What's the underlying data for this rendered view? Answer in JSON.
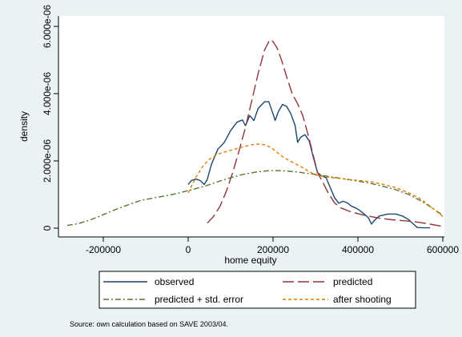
{
  "chart_data": {
    "type": "line",
    "title": "",
    "xlabel": "home equity",
    "ylabel": "density",
    "xlim": [
      -310000,
      610000
    ],
    "ylim": [
      -200000,
      6300000
    ],
    "y_unit_note": "y values stored as density x 1e12",
    "xticks": [
      -200000,
      0,
      200000,
      400000,
      600000
    ],
    "xtick_labels": [
      "-200000",
      "0",
      "200000",
      "400000",
      "600000"
    ],
    "yticks": [
      0,
      2000000,
      4000000,
      6000000
    ],
    "ytick_labels": [
      "0",
      "2.000e-06",
      "4.000e-06",
      "6.000e-06"
    ],
    "grid": false,
    "legend_position": "bottom",
    "note": "Source: own calculation based on SAVE 2003/04.",
    "series": [
      {
        "name": "observed",
        "color": "#1a476f",
        "dash": "solid",
        "points": [
          [
            0,
            1300000
          ],
          [
            8000,
            1420000
          ],
          [
            18000,
            1460000
          ],
          [
            28000,
            1420000
          ],
          [
            38000,
            1300000
          ],
          [
            45000,
            1450000
          ],
          [
            55000,
            1900000
          ],
          [
            70000,
            2350000
          ],
          [
            85000,
            2550000
          ],
          [
            100000,
            2900000
          ],
          [
            115000,
            3150000
          ],
          [
            128000,
            3220000
          ],
          [
            135000,
            3050000
          ],
          [
            145000,
            3350000
          ],
          [
            155000,
            3200000
          ],
          [
            165000,
            3560000
          ],
          [
            180000,
            3760000
          ],
          [
            190000,
            3760000
          ],
          [
            200000,
            3400000
          ],
          [
            205000,
            3200000
          ],
          [
            212000,
            3450000
          ],
          [
            222000,
            3680000
          ],
          [
            232000,
            3620000
          ],
          [
            242000,
            3400000
          ],
          [
            252000,
            3050000
          ],
          [
            258000,
            2550000
          ],
          [
            265000,
            2700000
          ],
          [
            275000,
            2780000
          ],
          [
            285000,
            2600000
          ],
          [
            295000,
            2100000
          ],
          [
            305000,
            1650000
          ],
          [
            315000,
            1550000
          ],
          [
            325000,
            1500000
          ],
          [
            335000,
            1200000
          ],
          [
            345000,
            900000
          ],
          [
            355000,
            740000
          ],
          [
            365000,
            800000
          ],
          [
            375000,
            750000
          ],
          [
            385000,
            650000
          ],
          [
            395000,
            600000
          ],
          [
            405000,
            520000
          ],
          [
            415000,
            420000
          ],
          [
            425000,
            300000
          ],
          [
            432000,
            120000
          ],
          [
            438000,
            220000
          ],
          [
            450000,
            360000
          ],
          [
            470000,
            420000
          ],
          [
            490000,
            420000
          ],
          [
            505000,
            360000
          ],
          [
            520000,
            250000
          ],
          [
            530000,
            130000
          ],
          [
            540000,
            20000
          ],
          [
            555000,
            10000
          ],
          [
            570000,
            10000
          ]
        ]
      },
      {
        "name": "predicted",
        "color": "#90353b",
        "dash": "long-dash",
        "points": [
          [
            45000,
            150000
          ],
          [
            60000,
            350000
          ],
          [
            75000,
            650000
          ],
          [
            90000,
            1100000
          ],
          [
            105000,
            1650000
          ],
          [
            120000,
            2300000
          ],
          [
            135000,
            3000000
          ],
          [
            150000,
            3800000
          ],
          [
            165000,
            4600000
          ],
          [
            180000,
            5300000
          ],
          [
            192000,
            5600000
          ],
          [
            200000,
            5550000
          ],
          [
            210000,
            5350000
          ],
          [
            220000,
            5000000
          ],
          [
            232000,
            4500000
          ],
          [
            245000,
            4000000
          ],
          [
            258000,
            3700000
          ],
          [
            270000,
            3350000
          ],
          [
            282000,
            2800000
          ],
          [
            295000,
            2150000
          ],
          [
            305000,
            1650000
          ],
          [
            318000,
            1350000
          ],
          [
            330000,
            1050000
          ],
          [
            345000,
            750000
          ],
          [
            360000,
            600000
          ],
          [
            380000,
            500000
          ],
          [
            400000,
            430000
          ],
          [
            420000,
            370000
          ],
          [
            450000,
            300000
          ],
          [
            480000,
            250000
          ],
          [
            510000,
            220000
          ],
          [
            540000,
            180000
          ],
          [
            570000,
            120000
          ],
          [
            600000,
            50000
          ]
        ]
      },
      {
        "name": "predicted + std. error",
        "color": "#55752f",
        "dash": "dash-dot",
        "points": [
          [
            -285000,
            80000
          ],
          [
            -260000,
            130000
          ],
          [
            -230000,
            250000
          ],
          [
            -200000,
            400000
          ],
          [
            -170000,
            560000
          ],
          [
            -140000,
            700000
          ],
          [
            -110000,
            830000
          ],
          [
            -80000,
            900000
          ],
          [
            -50000,
            970000
          ],
          [
            -20000,
            1050000
          ],
          [
            10000,
            1150000
          ],
          [
            40000,
            1250000
          ],
          [
            70000,
            1380000
          ],
          [
            100000,
            1500000
          ],
          [
            130000,
            1600000
          ],
          [
            160000,
            1670000
          ],
          [
            190000,
            1710000
          ],
          [
            220000,
            1710000
          ],
          [
            250000,
            1680000
          ],
          [
            280000,
            1630000
          ],
          [
            310000,
            1580000
          ],
          [
            340000,
            1520000
          ],
          [
            370000,
            1460000
          ],
          [
            400000,
            1400000
          ],
          [
            430000,
            1330000
          ],
          [
            460000,
            1240000
          ],
          [
            490000,
            1140000
          ],
          [
            520000,
            1000000
          ],
          [
            550000,
            800000
          ],
          [
            575000,
            600000
          ],
          [
            600000,
            380000
          ]
        ]
      },
      {
        "name": "after shooting",
        "color": "#e37e00",
        "dash": "short-dash",
        "points": [
          [
            0,
            1050000
          ],
          [
            10000,
            1300000
          ],
          [
            20000,
            1550000
          ],
          [
            35000,
            1850000
          ],
          [
            50000,
            2050000
          ],
          [
            70000,
            2200000
          ],
          [
            90000,
            2280000
          ],
          [
            110000,
            2350000
          ],
          [
            130000,
            2420000
          ],
          [
            150000,
            2480000
          ],
          [
            165000,
            2500000
          ],
          [
            180000,
            2480000
          ],
          [
            195000,
            2400000
          ],
          [
            210000,
            2250000
          ],
          [
            225000,
            2100000
          ],
          [
            240000,
            2000000
          ],
          [
            255000,
            1900000
          ],
          [
            270000,
            1800000
          ],
          [
            285000,
            1680000
          ],
          [
            300000,
            1580000
          ],
          [
            320000,
            1530000
          ],
          [
            340000,
            1500000
          ],
          [
            370000,
            1460000
          ],
          [
            400000,
            1420000
          ],
          [
            430000,
            1380000
          ],
          [
            460000,
            1300000
          ],
          [
            490000,
            1200000
          ],
          [
            520000,
            1050000
          ],
          [
            550000,
            850000
          ],
          [
            575000,
            600000
          ],
          [
            600000,
            350000
          ]
        ]
      }
    ]
  }
}
